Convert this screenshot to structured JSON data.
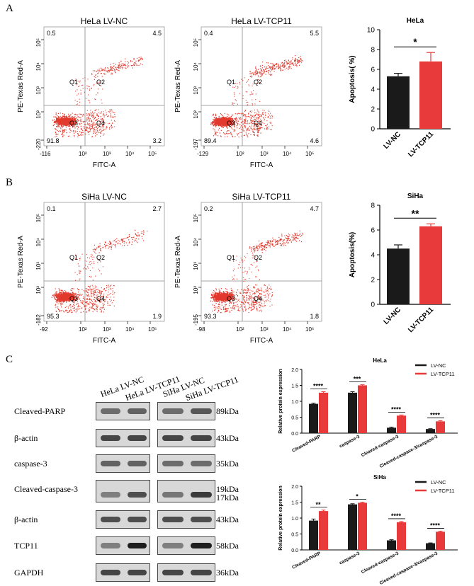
{
  "panels": {
    "a": "A",
    "b": "B",
    "c": "C"
  },
  "flow": [
    {
      "title": "HeLa LV-NC",
      "x_label": "FITC-A",
      "y_label": "PE-Texas Red-A",
      "x_ticks": [
        "-116",
        "10²",
        "10³",
        "10⁴",
        "10⁵"
      ],
      "y_ticks": [
        "-220",
        "10²",
        "10³",
        "10⁴",
        "10⁵"
      ],
      "tl": "0.5",
      "tr": "4.5",
      "bl": "91.8",
      "br": "3.2",
      "seed": 11,
      "q2_density": 0.6
    },
    {
      "title": "HeLa LV-TCP11",
      "x_label": "FITC-A",
      "y_label": "PE-Texas Red-A",
      "x_ticks": [
        "-129",
        "10²",
        "10³",
        "10⁴",
        "10⁵"
      ],
      "y_ticks": [
        "-197",
        "10²",
        "10³",
        "10⁴",
        "10⁵"
      ],
      "tl": "0.4",
      "tr": "5.5",
      "bl": "89.4",
      "br": "4.6",
      "seed": 23,
      "q2_density": 1.0
    },
    {
      "title": "SiHa LV-NC",
      "x_label": "FITC-A",
      "y_label": "PE-Texas Red-A",
      "x_ticks": [
        "-92",
        "10²",
        "10³",
        "10⁴",
        "10⁵"
      ],
      "y_ticks": [
        "-182",
        "10²",
        "10³",
        "10⁴",
        "10⁵"
      ],
      "tl": "0.1",
      "tr": "2.7",
      "bl": "95.3",
      "br": "1.9",
      "seed": 37,
      "q2_density": 0.5
    },
    {
      "title": "SiHa LV-TCP11",
      "x_label": "FITC-A",
      "y_label": "PE-Texas Red-A",
      "x_ticks": [
        "-98",
        "10²",
        "10³",
        "10⁴",
        "10⁵"
      ],
      "y_ticks": [
        "-195",
        "10²",
        "10³",
        "10⁴",
        "10⁵"
      ],
      "tl": "0.2",
      "tr": "4.7",
      "bl": "93.3",
      "br": "1.8",
      "seed": 51,
      "q2_density": 0.9
    }
  ],
  "quadrant_labels": [
    "Q1",
    "Q2",
    "Q3",
    "Q4"
  ],
  "chart_data": [
    {
      "type": "bar",
      "title": "HeLa",
      "ylabel": "Apoptosis( %)",
      "categories": [
        "LV-NC",
        "LV-TCP11"
      ],
      "values": [
        5.3,
        6.8
      ],
      "errors": [
        0.3,
        0.9
      ],
      "colors": [
        "#1a1a1a",
        "#e83a3a"
      ],
      "ylim": [
        0,
        10
      ],
      "yticks": [
        0,
        2,
        4,
        6,
        8,
        10
      ],
      "significance": "*"
    },
    {
      "type": "bar",
      "title": "SiHa",
      "ylabel": "Apoptosis(%)",
      "categories": [
        "LV-NC",
        "LV-TCP11"
      ],
      "values": [
        4.5,
        6.3
      ],
      "errors": [
        0.3,
        0.2
      ],
      "colors": [
        "#1a1a1a",
        "#e83a3a"
      ],
      "ylim": [
        0,
        8
      ],
      "yticks": [
        0,
        2,
        4,
        6,
        8
      ],
      "significance": "**"
    },
    {
      "type": "bar",
      "title": "HeLa",
      "ylabel": "Relative protein expression",
      "categories": [
        "Cleaved-PARP",
        "caspase-3",
        "Cleaved-caspase-3",
        "Cleaved-caspase-3/caspase-3"
      ],
      "series": [
        {
          "name": "LV-NC",
          "color": "#1a1a1a",
          "values": [
            0.92,
            1.27,
            0.17,
            0.13
          ],
          "errors": [
            0.02,
            0.03,
            0.02,
            0.01
          ]
        },
        {
          "name": "LV-TCP11",
          "color": "#e83a3a",
          "values": [
            1.27,
            1.5,
            0.55,
            0.37
          ],
          "errors": [
            0.03,
            0.02,
            0.02,
            0.02
          ]
        }
      ],
      "ylim": [
        0,
        2.0
      ],
      "yticks": [
        0.0,
        0.5,
        1.0,
        1.5,
        2.0
      ],
      "significance": [
        "****",
        "***",
        "****",
        "****"
      ],
      "legend": "top-right"
    },
    {
      "type": "bar",
      "title": "SiHa",
      "ylabel": "Relative protein expression",
      "categories": [
        "Cleaved-PARP",
        "caspase-3",
        "Cleaved-caspase-3",
        "Cleaved-caspase-3/caspase-3"
      ],
      "series": [
        {
          "name": "LV-NC",
          "color": "#1a1a1a",
          "values": [
            0.92,
            1.43,
            0.3,
            0.21
          ],
          "errors": [
            0.05,
            0.02,
            0.02,
            0.01
          ]
        },
        {
          "name": "LV-TCP11",
          "color": "#e83a3a",
          "values": [
            1.22,
            1.48,
            0.87,
            0.57
          ],
          "errors": [
            0.03,
            0.02,
            0.02,
            0.02
          ]
        }
      ],
      "ylim": [
        0,
        2.0
      ],
      "yticks": [
        0.0,
        0.5,
        1.0,
        1.5,
        2.0
      ],
      "significance": [
        "**",
        "*",
        "****",
        "****"
      ],
      "legend": "top-right"
    }
  ],
  "western": {
    "lanes_left": [
      "HeLa LV-NC",
      "HeLa LV-TCP11"
    ],
    "lanes_right": [
      "SiHa LV-NC",
      "SiHa LV-TCP11"
    ],
    "rows": [
      {
        "label": "Cleaved-PARP",
        "kda": "89kDa"
      },
      {
        "label": "β-actin",
        "kda": "43kDa"
      },
      {
        "label": "caspase-3",
        "kda": "35kDa"
      },
      {
        "label": "Cleaved-caspase-3",
        "kda": "19kDa",
        "kda2": "17kDa"
      },
      {
        "label": "β-actin",
        "kda": "43kDa"
      },
      {
        "label": "TCP11",
        "kda": "58kDa"
      },
      {
        "label": "GAPDH",
        "kda": "36kDa"
      }
    ]
  }
}
